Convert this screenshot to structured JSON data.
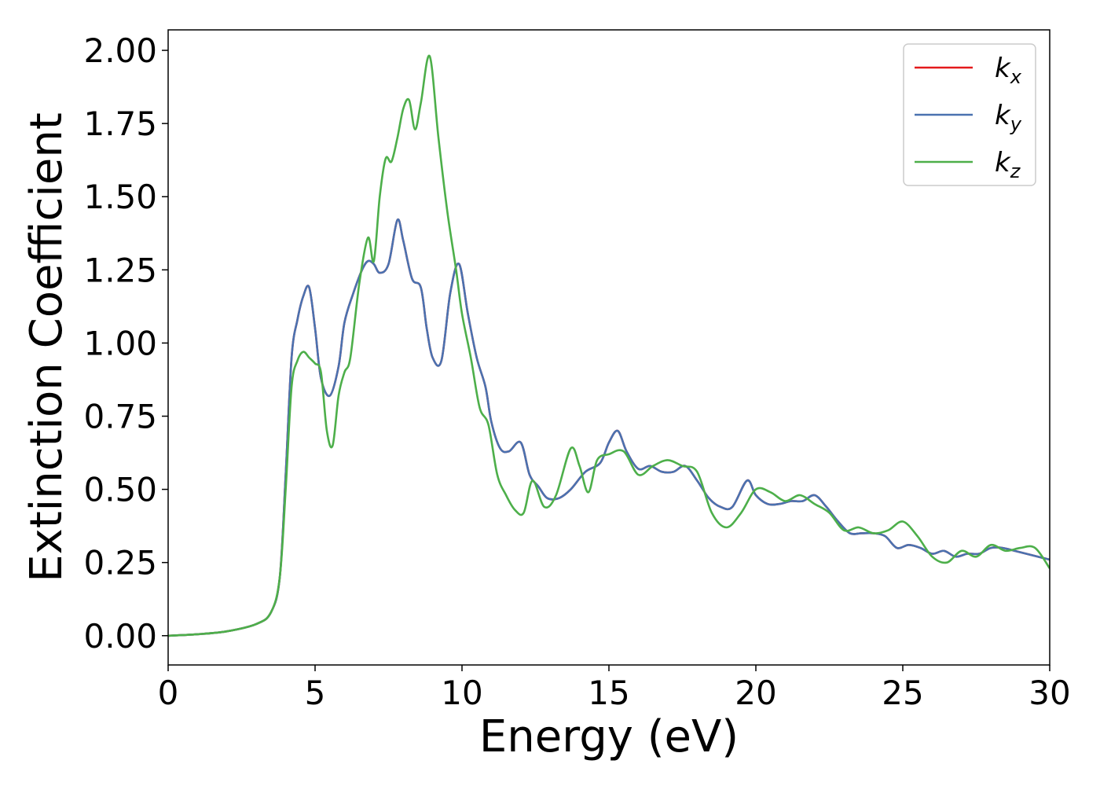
{
  "chart_data": {
    "type": "line",
    "title": "",
    "xlabel": "Energy (eV)",
    "ylabel": "Extinction Coefficient",
    "xlim": [
      0,
      30
    ],
    "ylim": [
      -0.1,
      2.07
    ],
    "xticks": [
      0,
      5,
      10,
      15,
      20,
      25,
      30
    ],
    "yticks": [
      "0.00",
      "0.25",
      "0.50",
      "0.75",
      "1.00",
      "1.25",
      "1.50",
      "1.75",
      "2.00"
    ],
    "grid": false,
    "legend_position": "top-right",
    "legend": [
      {
        "base": "k",
        "sub": "x",
        "color": "#e41a1c"
      },
      {
        "base": "k",
        "sub": "y",
        "color": "#4a72b0"
      },
      {
        "base": "k",
        "sub": "z",
        "color": "#4daf4a"
      }
    ],
    "series": [
      {
        "name": "k_x",
        "color": "#e41a1c",
        "x": [
          0,
          1,
          2,
          3,
          3.5,
          3.8,
          4.0,
          4.2,
          4.4,
          4.6,
          4.8,
          5.0,
          5.2,
          5.5,
          5.8,
          6.0,
          6.3,
          6.6,
          6.8,
          7.0,
          7.2,
          7.5,
          7.8,
          8.0,
          8.3,
          8.6,
          8.8,
          9.0,
          9.3,
          9.6,
          9.9,
          10.2,
          10.5,
          10.8,
          11.0,
          11.3,
          11.6,
          12.0,
          12.3,
          12.6,
          12.9,
          13.3,
          13.7,
          14.2,
          14.7,
          15.0,
          15.3,
          15.6,
          16.0,
          16.4,
          16.8,
          17.2,
          17.6,
          18.0,
          18.4,
          18.8,
          19.2,
          19.7,
          20.0,
          20.4,
          20.8,
          21.2,
          21.6,
          22.0,
          22.4,
          22.8,
          23.2,
          23.6,
          24.0,
          24.4,
          24.8,
          25.2,
          25.6,
          26.0,
          26.4,
          26.8,
          27.2,
          27.6,
          28.0,
          28.4,
          28.8,
          29.2,
          29.6,
          30.0
        ],
        "y": [
          0.0,
          0.005,
          0.015,
          0.04,
          0.08,
          0.2,
          0.55,
          0.95,
          1.08,
          1.16,
          1.19,
          1.05,
          0.88,
          0.82,
          0.92,
          1.07,
          1.17,
          1.25,
          1.28,
          1.27,
          1.24,
          1.27,
          1.42,
          1.35,
          1.22,
          1.19,
          1.05,
          0.95,
          0.94,
          1.17,
          1.27,
          1.1,
          0.95,
          0.85,
          0.73,
          0.64,
          0.63,
          0.66,
          0.55,
          0.51,
          0.47,
          0.47,
          0.5,
          0.56,
          0.59,
          0.66,
          0.7,
          0.63,
          0.57,
          0.58,
          0.56,
          0.56,
          0.58,
          0.53,
          0.47,
          0.44,
          0.44,
          0.53,
          0.48,
          0.45,
          0.45,
          0.46,
          0.46,
          0.48,
          0.44,
          0.39,
          0.35,
          0.35,
          0.35,
          0.34,
          0.3,
          0.31,
          0.3,
          0.28,
          0.29,
          0.27,
          0.28,
          0.28,
          0.3,
          0.3,
          0.29,
          0.28,
          0.27,
          0.26
        ]
      },
      {
        "name": "k_y",
        "color": "#4a72b0",
        "x": [
          0,
          1,
          2,
          3,
          3.5,
          3.8,
          4.0,
          4.2,
          4.4,
          4.6,
          4.8,
          5.0,
          5.2,
          5.5,
          5.8,
          6.0,
          6.3,
          6.6,
          6.8,
          7.0,
          7.2,
          7.5,
          7.8,
          8.0,
          8.3,
          8.6,
          8.8,
          9.0,
          9.3,
          9.6,
          9.9,
          10.2,
          10.5,
          10.8,
          11.0,
          11.3,
          11.6,
          12.0,
          12.3,
          12.6,
          12.9,
          13.3,
          13.7,
          14.2,
          14.7,
          15.0,
          15.3,
          15.6,
          16.0,
          16.4,
          16.8,
          17.2,
          17.6,
          18.0,
          18.4,
          18.8,
          19.2,
          19.7,
          20.0,
          20.4,
          20.8,
          21.2,
          21.6,
          22.0,
          22.4,
          22.8,
          23.2,
          23.6,
          24.0,
          24.4,
          24.8,
          25.2,
          25.6,
          26.0,
          26.4,
          26.8,
          27.2,
          27.6,
          28.0,
          28.4,
          28.8,
          29.2,
          29.6,
          30.0
        ],
        "y": [
          0.0,
          0.005,
          0.015,
          0.04,
          0.08,
          0.2,
          0.55,
          0.95,
          1.08,
          1.16,
          1.19,
          1.05,
          0.88,
          0.82,
          0.92,
          1.07,
          1.17,
          1.25,
          1.28,
          1.27,
          1.24,
          1.27,
          1.42,
          1.35,
          1.22,
          1.19,
          1.05,
          0.95,
          0.94,
          1.17,
          1.27,
          1.1,
          0.95,
          0.85,
          0.73,
          0.64,
          0.63,
          0.66,
          0.55,
          0.51,
          0.47,
          0.47,
          0.5,
          0.56,
          0.59,
          0.66,
          0.7,
          0.63,
          0.57,
          0.58,
          0.56,
          0.56,
          0.58,
          0.53,
          0.47,
          0.44,
          0.44,
          0.53,
          0.48,
          0.45,
          0.45,
          0.46,
          0.46,
          0.48,
          0.44,
          0.39,
          0.35,
          0.35,
          0.35,
          0.34,
          0.3,
          0.31,
          0.3,
          0.28,
          0.29,
          0.27,
          0.28,
          0.28,
          0.3,
          0.3,
          0.29,
          0.28,
          0.27,
          0.26
        ]
      },
      {
        "name": "k_z",
        "color": "#4daf4a",
        "x": [
          0,
          1,
          2,
          3,
          3.5,
          3.8,
          4.0,
          4.2,
          4.4,
          4.6,
          4.8,
          5.0,
          5.2,
          5.4,
          5.6,
          5.8,
          6.0,
          6.2,
          6.5,
          6.8,
          7.0,
          7.2,
          7.4,
          7.6,
          7.8,
          8.0,
          8.2,
          8.4,
          8.6,
          8.9,
          9.2,
          9.5,
          9.8,
          10.0,
          10.3,
          10.6,
          10.9,
          11.2,
          11.5,
          11.8,
          12.1,
          12.4,
          12.8,
          13.2,
          13.7,
          14.0,
          14.3,
          14.6,
          15.0,
          15.5,
          16.0,
          16.5,
          17.0,
          17.5,
          18.0,
          18.5,
          19.0,
          19.5,
          20.0,
          20.5,
          21.0,
          21.5,
          22.0,
          22.5,
          23.0,
          23.5,
          24.0,
          24.5,
          25.0,
          25.5,
          26.0,
          26.5,
          27.0,
          27.5,
          28.0,
          28.5,
          29.0,
          29.5,
          30.0
        ],
        "y": [
          0.0,
          0.005,
          0.015,
          0.04,
          0.08,
          0.2,
          0.5,
          0.85,
          0.94,
          0.97,
          0.95,
          0.93,
          0.9,
          0.7,
          0.65,
          0.82,
          0.9,
          0.95,
          1.2,
          1.36,
          1.28,
          1.5,
          1.63,
          1.62,
          1.7,
          1.8,
          1.83,
          1.73,
          1.82,
          1.98,
          1.7,
          1.45,
          1.25,
          1.1,
          0.95,
          0.78,
          0.72,
          0.55,
          0.48,
          0.43,
          0.42,
          0.53,
          0.44,
          0.48,
          0.64,
          0.58,
          0.49,
          0.6,
          0.62,
          0.63,
          0.55,
          0.58,
          0.6,
          0.58,
          0.56,
          0.42,
          0.37,
          0.42,
          0.5,
          0.49,
          0.46,
          0.48,
          0.45,
          0.42,
          0.36,
          0.37,
          0.35,
          0.36,
          0.39,
          0.34,
          0.27,
          0.25,
          0.29,
          0.27,
          0.31,
          0.29,
          0.3,
          0.3,
          0.23
        ]
      }
    ]
  }
}
